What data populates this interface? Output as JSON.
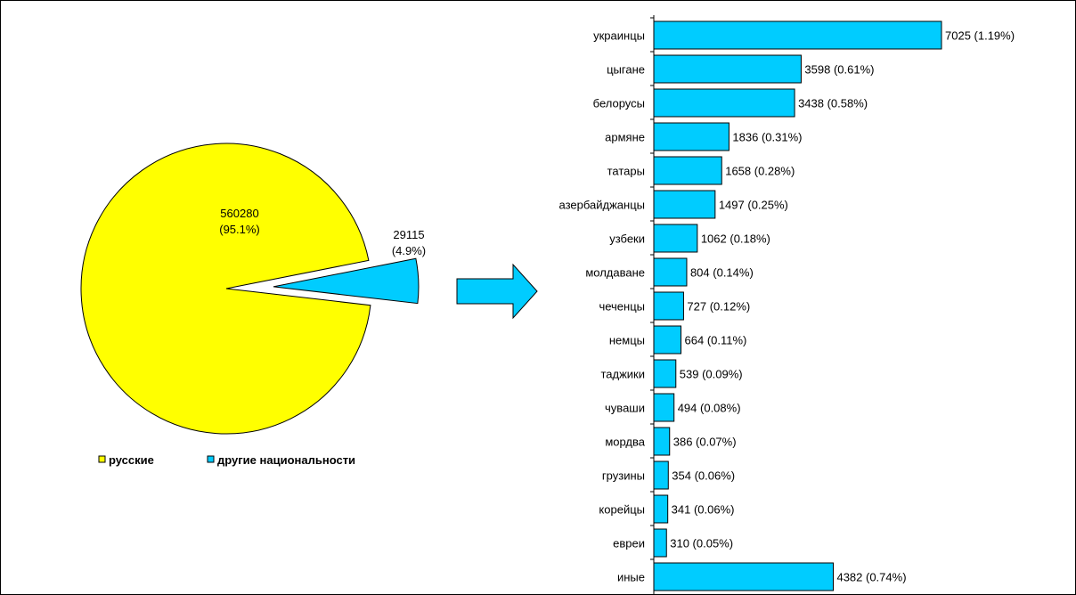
{
  "colors": {
    "russians": "#FFFF00",
    "others": "#00CCFF",
    "bar": "#00CCFF",
    "outline": "#000000"
  },
  "chart_data": [
    {
      "type": "pie",
      "slices": [
        {
          "name": "русские",
          "value": 560280,
          "label_value": "560280",
          "label_pct": "(95.1%)",
          "color": "#FFFF00"
        },
        {
          "name": "другие национальности",
          "value": 29115,
          "label_value": "29115",
          "label_pct": "(4.9%)",
          "color": "#00CCFF",
          "exploded": true
        }
      ],
      "legend": {
        "position": "bottom",
        "items": [
          "русские",
          "другие национальности"
        ]
      }
    },
    {
      "type": "bar",
      "orientation": "horizontal",
      "categories": [
        "украинцы",
        "цыгане",
        "белорусы",
        "армяне",
        "татары",
        "азербайджанцы",
        "узбеки",
        "молдаване",
        "чеченцы",
        "немцы",
        "таджики",
        "чуваши",
        "мордва",
        "грузины",
        "корейцы",
        "евреи",
        "иные"
      ],
      "values": [
        7025,
        3598,
        3438,
        1836,
        1658,
        1497,
        1062,
        804,
        727,
        664,
        539,
        494,
        386,
        354,
        341,
        310,
        4382
      ],
      "data_labels": [
        "7025 (1.19%)",
        "3598 (0.61%)",
        "3438 (0.58%)",
        "1836 (0.31%)",
        "1658 (0.28%)",
        "1497 (0.25%)",
        "1062 (0.18%)",
        "804 (0.14%)",
        "727 (0.12%)",
        "664 (0.11%)",
        "539 (0.09%)",
        "494 (0.08%)",
        "386 (0.07%)",
        "354 (0.06%)",
        "341 (0.06%)",
        "310 (0.05%)",
        "4382 (0.74%)"
      ],
      "xlim": [
        0,
        7025
      ]
    }
  ]
}
